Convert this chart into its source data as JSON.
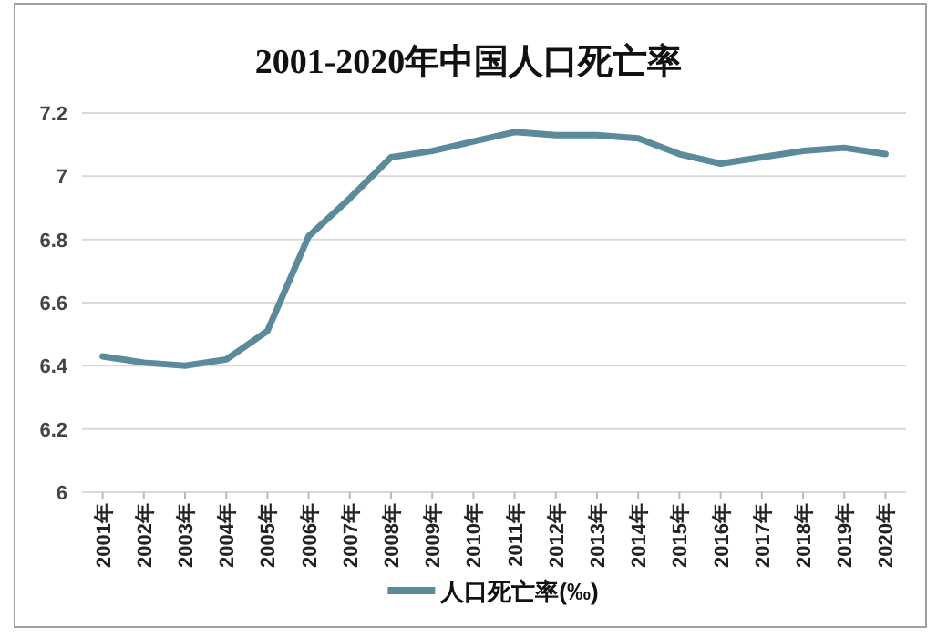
{
  "chart_data": {
    "type": "line",
    "title": "2001-2020年中国人口死亡率",
    "categories": [
      "2001年",
      "2002年",
      "2003年",
      "2004年",
      "2005年",
      "2006年",
      "2007年",
      "2008年",
      "2009年",
      "2010年",
      "2011年",
      "2012年",
      "2013年",
      "2014年",
      "2015年",
      "2016年",
      "2017年",
      "2018年",
      "2019年",
      "2020年"
    ],
    "series": [
      {
        "name": "人口死亡率(‰)",
        "color": "#5b8a9a",
        "values": [
          6.43,
          6.41,
          6.4,
          6.42,
          6.51,
          6.81,
          6.93,
          7.06,
          7.08,
          7.11,
          7.14,
          7.13,
          7.13,
          7.12,
          7.07,
          7.04,
          7.06,
          7.08,
          7.09,
          7.07
        ]
      }
    ],
    "ylim": [
      6,
      7.2
    ],
    "yticks": [
      6,
      6.2,
      6.4,
      6.6,
      6.8,
      7,
      7.2
    ],
    "grid": "y",
    "legend": "bottom"
  }
}
